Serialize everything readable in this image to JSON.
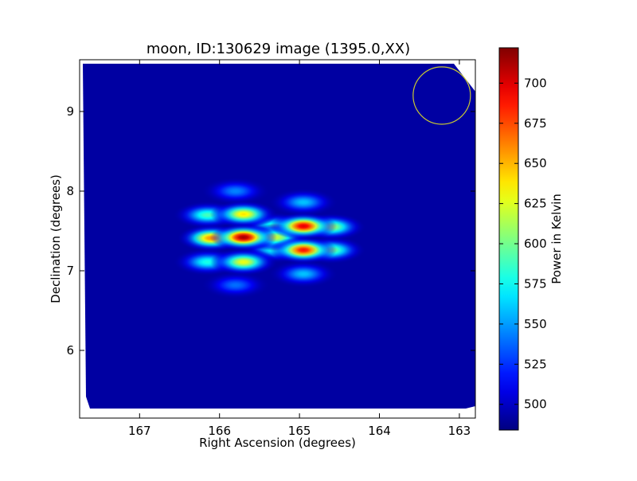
{
  "chart_data": {
    "type": "heatmap",
    "title": "moon, ID:130629 image (1395.0,XX)",
    "xlabel": "Right Ascension (degrees)",
    "ylabel": "Declination (degrees)",
    "xlim": [
      167.75,
      162.8
    ],
    "ylim": [
      5.15,
      9.65
    ],
    "x_ticks": [
      167,
      166,
      165,
      164,
      163
    ],
    "y_ticks": [
      6,
      7,
      8,
      9
    ],
    "x_tick_labels": [
      "167",
      "166",
      "165",
      "164",
      "163"
    ],
    "y_tick_labels": [
      "6",
      "7",
      "8",
      "9"
    ],
    "colorbar": {
      "label": "Power in Kelvin",
      "range": [
        484,
        722
      ],
      "ticks": [
        500,
        525,
        550,
        575,
        600,
        625,
        650,
        675,
        700
      ],
      "tick_labels": [
        "500",
        "525",
        "550",
        "575",
        "600",
        "625",
        "650",
        "675",
        "700"
      ],
      "colormap": "jet"
    },
    "background_value": 492,
    "map_extent": {
      "ra": [
        167.7,
        162.85
      ],
      "dec": [
        5.2,
        9.62
      ]
    },
    "sources": [
      {
        "ra": 165.7,
        "dec": 7.42,
        "value": 715
      },
      {
        "ra": 166.1,
        "dec": 7.41,
        "value": 660
      },
      {
        "ra": 165.3,
        "dec": 7.42,
        "value": 620
      },
      {
        "ra": 165.7,
        "dec": 7.71,
        "value": 640
      },
      {
        "ra": 166.15,
        "dec": 7.7,
        "value": 590
      },
      {
        "ra": 165.7,
        "dec": 7.11,
        "value": 630
      },
      {
        "ra": 166.15,
        "dec": 7.11,
        "value": 580
      },
      {
        "ra": 165.8,
        "dec": 8.0,
        "value": 545
      },
      {
        "ra": 165.8,
        "dec": 6.82,
        "value": 540
      },
      {
        "ra": 164.95,
        "dec": 7.56,
        "value": 700
      },
      {
        "ra": 164.6,
        "dec": 7.55,
        "value": 610
      },
      {
        "ra": 165.3,
        "dec": 7.56,
        "value": 590
      },
      {
        "ra": 164.95,
        "dec": 7.26,
        "value": 690
      },
      {
        "ra": 164.6,
        "dec": 7.26,
        "value": 600
      },
      {
        "ra": 165.3,
        "dec": 7.27,
        "value": 580
      },
      {
        "ra": 164.95,
        "dec": 7.86,
        "value": 560
      },
      {
        "ra": 164.95,
        "dec": 6.96,
        "value": 560
      }
    ],
    "beam_circle": {
      "ra": 163.22,
      "dec": 9.2,
      "radius_deg": 0.36,
      "color": "#c8c832"
    },
    "grid": false,
    "legend": "colorbar-right"
  },
  "colors": {
    "background": "#ffffff",
    "axis": "#000000"
  }
}
